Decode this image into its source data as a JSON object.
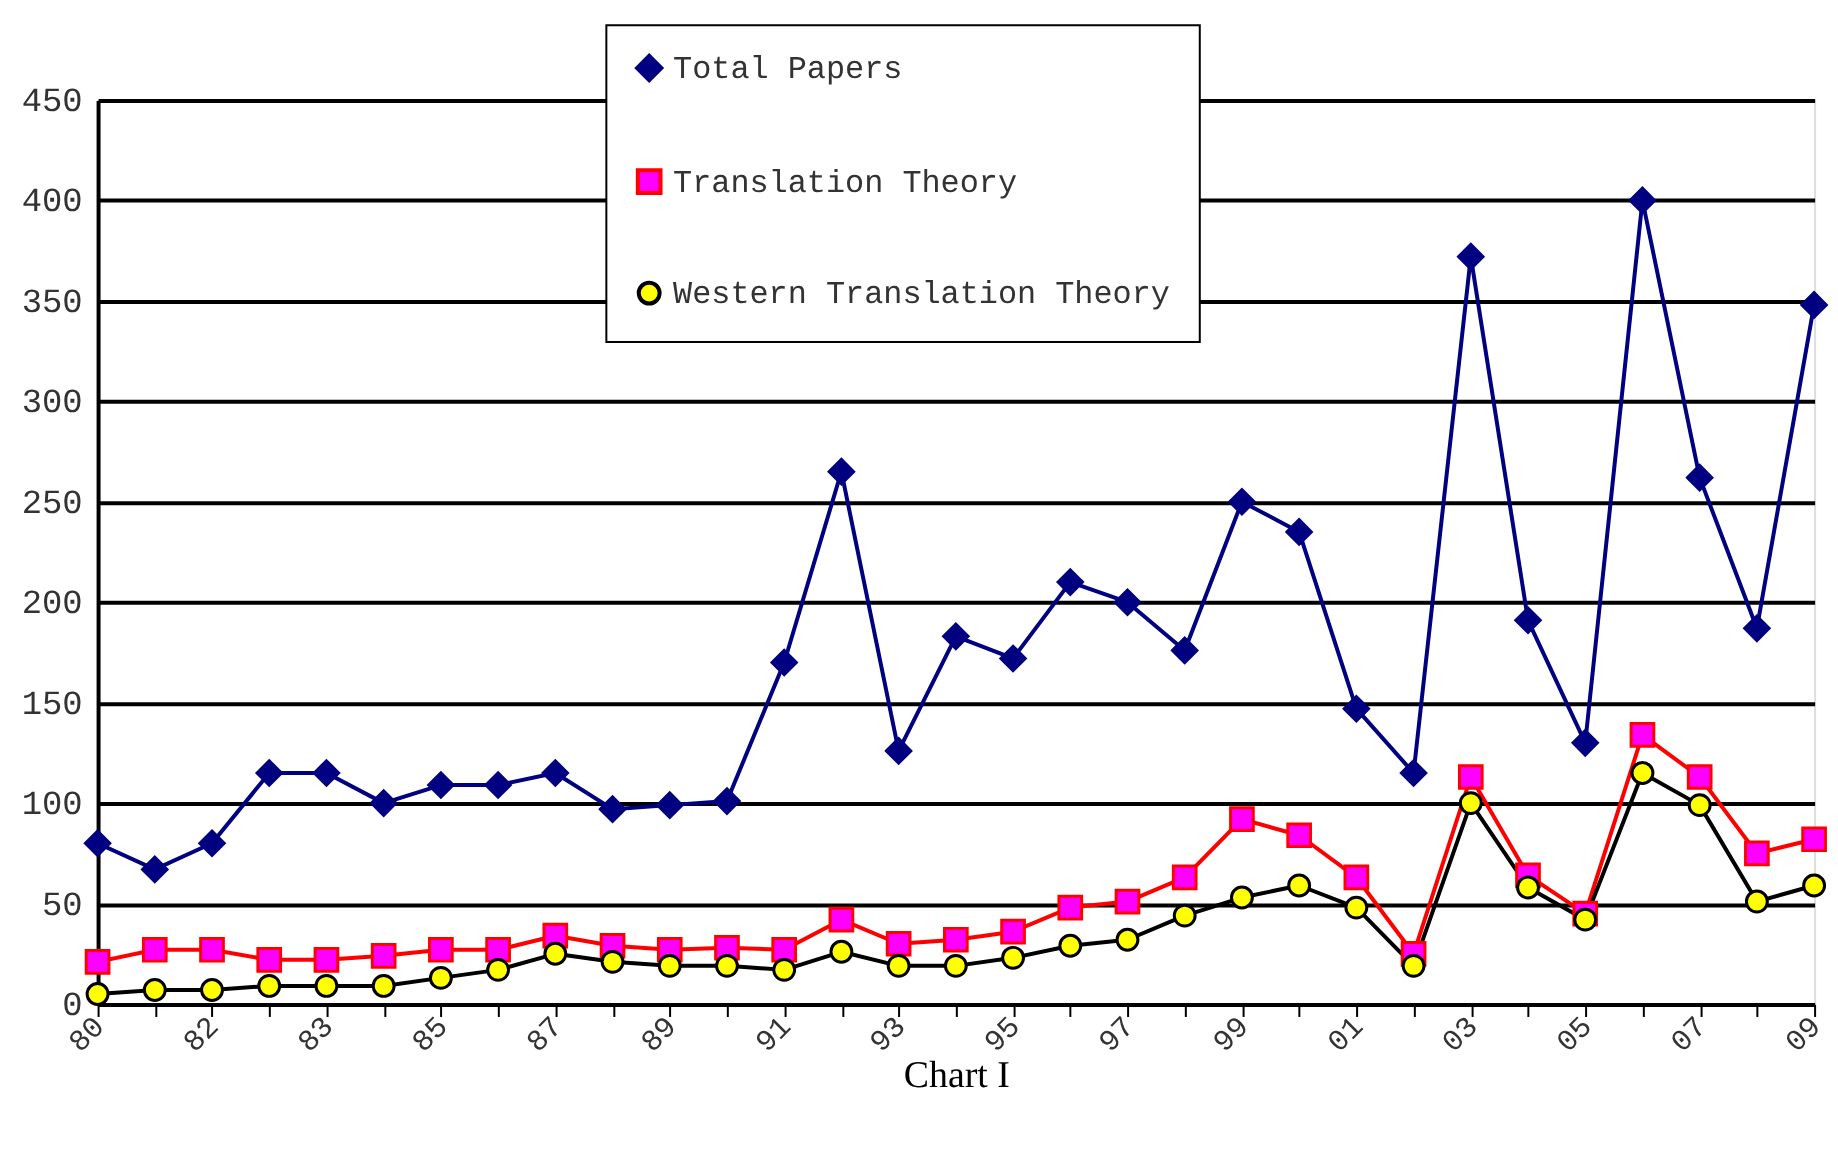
{
  "chart_data": {
    "type": "line",
    "xlabel": "Chart I",
    "categories": [
      "80",
      null,
      "82",
      null,
      "83",
      null,
      "85",
      null,
      "87",
      null,
      "89",
      null,
      "91",
      null,
      "93",
      null,
      "95",
      null,
      "97",
      null,
      "99",
      null,
      "01",
      null,
      "03",
      null,
      "05",
      null,
      "07",
      null,
      "09"
    ],
    "ylim": [
      0,
      450
    ],
    "yticks": [
      0,
      50,
      100,
      150,
      200,
      250,
      300,
      350,
      400,
      450
    ],
    "grid": "y",
    "legend": "top",
    "series": [
      {
        "name": "Total Papers",
        "color": "#000080",
        "marker": "diamond",
        "values": [
          80,
          67,
          80,
          115,
          115,
          100,
          109,
          109,
          115,
          97,
          99,
          101,
          170,
          265,
          126,
          183,
          172,
          210,
          200,
          176,
          250,
          235,
          147,
          115,
          372,
          191,
          130,
          400,
          262,
          187,
          348
        ]
      },
      {
        "name": "Translation Theory",
        "color": "#ff0000",
        "marker": "square",
        "values": [
          21,
          27,
          27,
          22,
          22,
          24,
          27,
          27,
          34,
          29,
          27,
          28,
          27,
          42,
          30,
          32,
          36,
          48,
          51,
          63,
          92,
          84,
          63,
          25,
          113,
          64,
          45,
          134,
          113,
          75,
          82
        ]
      },
      {
        "name": "Western Translation Theory",
        "color": "#000000",
        "marker": "circle",
        "values": [
          5,
          7,
          7,
          9,
          9,
          9,
          13,
          17,
          25,
          21,
          19,
          19,
          17,
          26,
          19,
          19,
          23,
          29,
          32,
          44,
          53,
          59,
          48,
          19,
          100,
          58,
          42,
          115,
          99,
          51,
          59
        ]
      }
    ]
  }
}
